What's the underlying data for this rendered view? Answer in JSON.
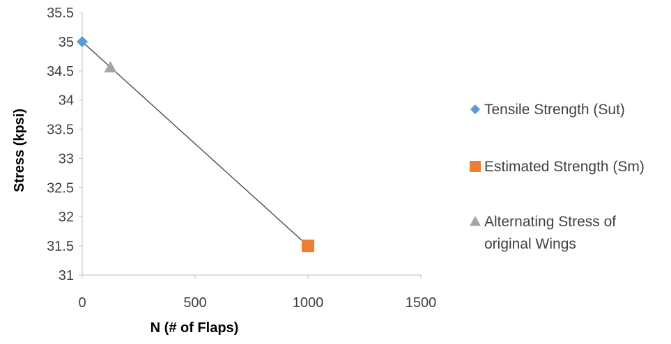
{
  "chart_data": {
    "type": "scatter",
    "title": "",
    "xlabel": "N (# of Flaps)",
    "ylabel": "Stress (kpsi)",
    "xlim": [
      0,
      1500
    ],
    "ylim": [
      31,
      35.5
    ],
    "x_ticks": [
      "0",
      "500",
      "1000",
      "1500"
    ],
    "y_ticks": [
      "31",
      "31.5",
      "32",
      "32.5",
      "33",
      "33.5",
      "34",
      "34.5",
      "35",
      "35.5"
    ],
    "grid": false,
    "legend_position": "right",
    "series": [
      {
        "name": "Tensile Strength (Sut)",
        "marker": "diamond",
        "color": "#5B9BD5",
        "points": [
          {
            "x": 0,
            "y": 35
          }
        ]
      },
      {
        "name": "Estimated Strength (Sm)",
        "marker": "square",
        "color": "#ED7D31",
        "points": [
          {
            "x": 1000,
            "y": 31.5
          }
        ]
      },
      {
        "name": "Alternating Stress of original Wings",
        "legend_lines": [
          "Alternating Stress of",
          "original Wings"
        ],
        "marker": "triangle",
        "color": "#A5A5A5",
        "points": [
          {
            "x": 125,
            "y": 34.56
          }
        ]
      }
    ],
    "trendline": {
      "from": {
        "x": 0,
        "y": 35
      },
      "to": {
        "x": 1000,
        "y": 31.5
      },
      "color": "#404040"
    }
  }
}
